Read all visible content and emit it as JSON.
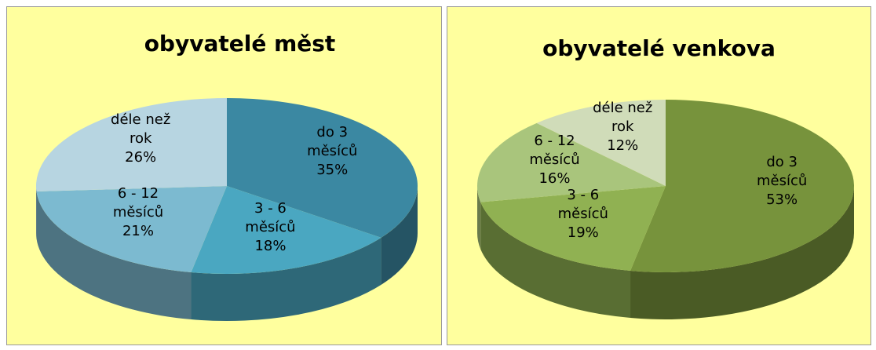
{
  "chart_data": [
    {
      "type": "pie",
      "title": "obyvatelé měst",
      "categories": [
        "do 3 měsíců",
        "3 - 6 měsíců",
        "6 - 12 měsíců",
        "déle než rok"
      ],
      "values": [
        35,
        18,
        21,
        26
      ],
      "value_labels": [
        "35%",
        "18%",
        "21%",
        "26%"
      ],
      "colors": [
        "#3b88a2",
        "#4aa7c1",
        "#7cbad0",
        "#b7d5e1"
      ]
    },
    {
      "type": "pie",
      "title": "obyvatelé venkova",
      "categories": [
        "do 3 měsíců",
        "3 - 6 měsíců",
        "6 - 12 měsíců",
        "déle než rok"
      ],
      "values": [
        53,
        19,
        16,
        12
      ],
      "value_labels": [
        "53%",
        "19%",
        "16%",
        "12%"
      ],
      "colors": [
        "#77933c",
        "#90b152",
        "#a9c57c",
        "#d0dcb9"
      ]
    }
  ]
}
